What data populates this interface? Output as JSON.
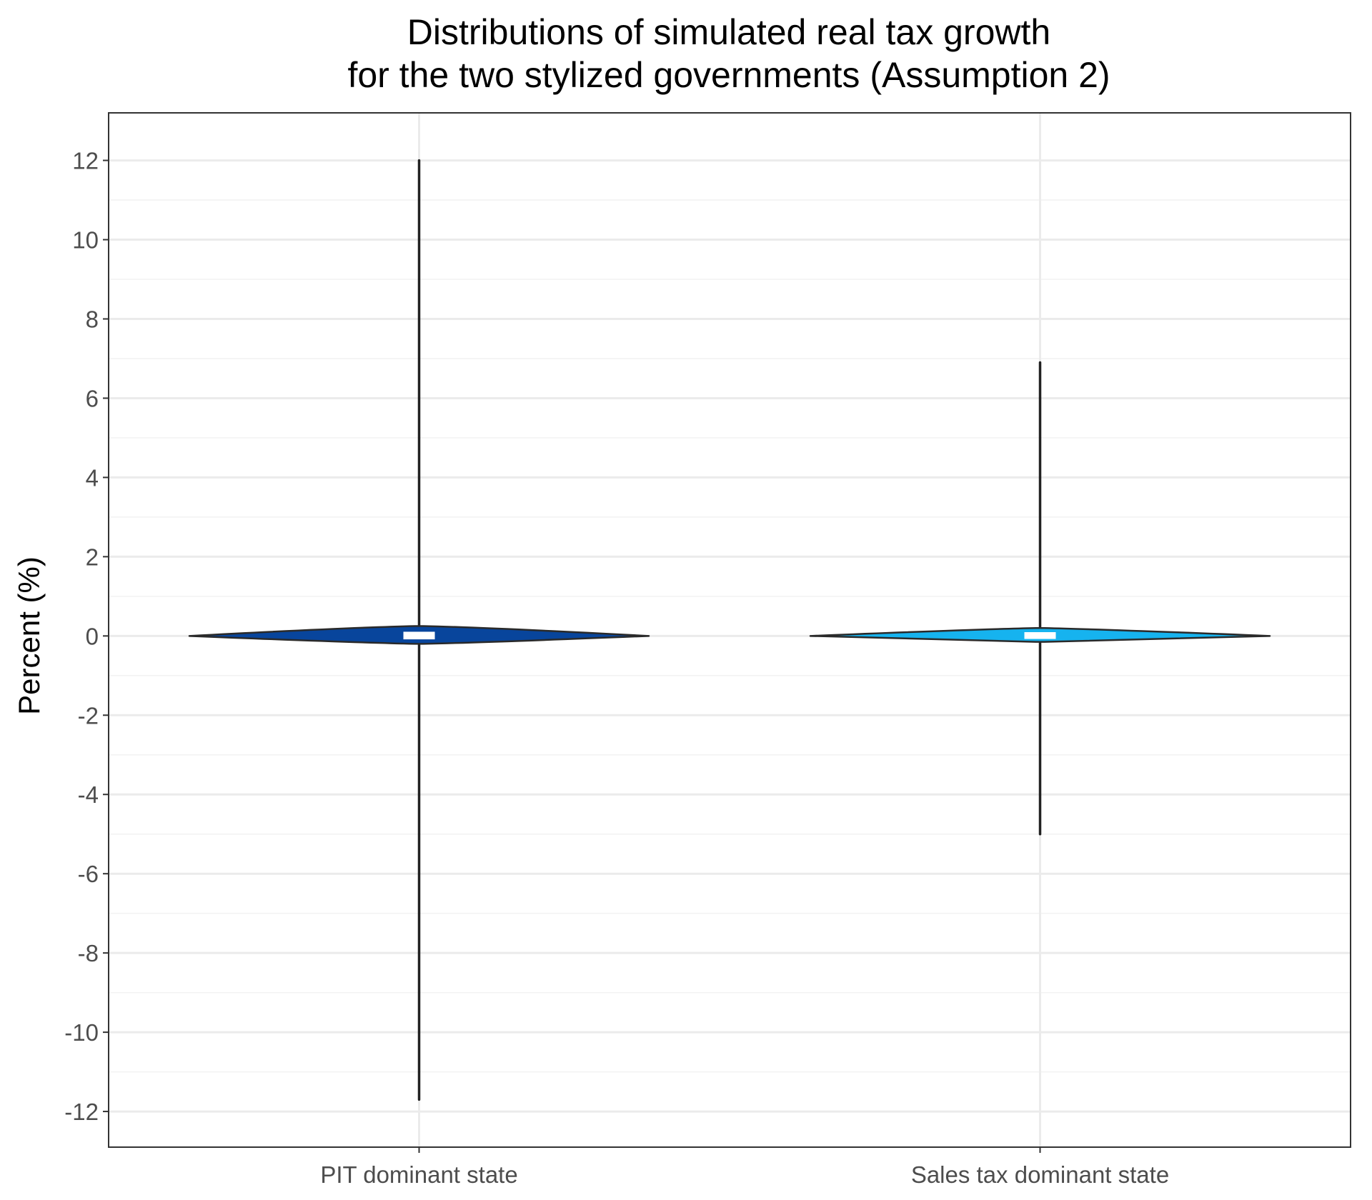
{
  "chart_data": {
    "type": "violin",
    "title_lines": [
      "Distributions of simulated real tax growth",
      "for the two stylized governments (Assumption 2)"
    ],
    "xlabel": "",
    "ylabel": "Percent (%)",
    "ylim": [
      -12.9,
      13.2
    ],
    "yticks": [
      12,
      10,
      8,
      6,
      4,
      2,
      0,
      -2,
      -4,
      -6,
      -8,
      -10,
      -12
    ],
    "ytick_labels": [
      "12",
      "10",
      "8",
      "6",
      "4",
      "2",
      "0",
      "-2",
      "-4",
      "-6",
      "-8",
      "-10",
      "-12"
    ],
    "grid": true,
    "legend": "none",
    "categories": [
      "PIT dominant state",
      "Sales tax dominant state"
    ],
    "series": [
      {
        "category": "PIT dominant state",
        "color": "#08459c",
        "min": -11.7,
        "max": 12.0,
        "q1": -0.05,
        "median": 0.0,
        "q3": 0.07,
        "core_low": -0.2,
        "core_high": 0.25,
        "relative_width": 1.0
      },
      {
        "category": "Sales tax dominant state",
        "color": "#16b3ef",
        "min": -5.0,
        "max": 6.9,
        "q1": -0.04,
        "median": 0.0,
        "q3": 0.06,
        "core_low": -0.15,
        "core_high": 0.2,
        "relative_width": 1.0
      }
    ]
  }
}
